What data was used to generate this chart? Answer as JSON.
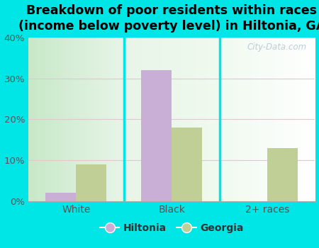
{
  "title": "Breakdown of poor residents within races\n(income below poverty level) in Hiltonia, GA",
  "categories": [
    "White",
    "Black",
    "2+ races"
  ],
  "hiltonia_values": [
    2.0,
    32.0,
    0.0
  ],
  "georgia_values": [
    9.0,
    18.0,
    13.0
  ],
  "hiltonia_color": "#c9aed6",
  "georgia_color": "#bfcf96",
  "background_outer": "#00e5e5",
  "background_inner_top": "#e8f5e8",
  "background_inner_bottom": "#d0ead0",
  "ylim": [
    0,
    40
  ],
  "yticks": [
    0,
    10,
    20,
    30,
    40
  ],
  "ytick_labels": [
    "0%",
    "10%",
    "20%",
    "30%",
    "40%"
  ],
  "bar_width": 0.32,
  "title_fontsize": 12.5,
  "legend_labels": [
    "Hiltonia",
    "Georgia"
  ],
  "watermark": "City-Data.com",
  "grid_color": "#e0c8d0",
  "tick_color": "#555555",
  "divider_color": "#00e5e5"
}
